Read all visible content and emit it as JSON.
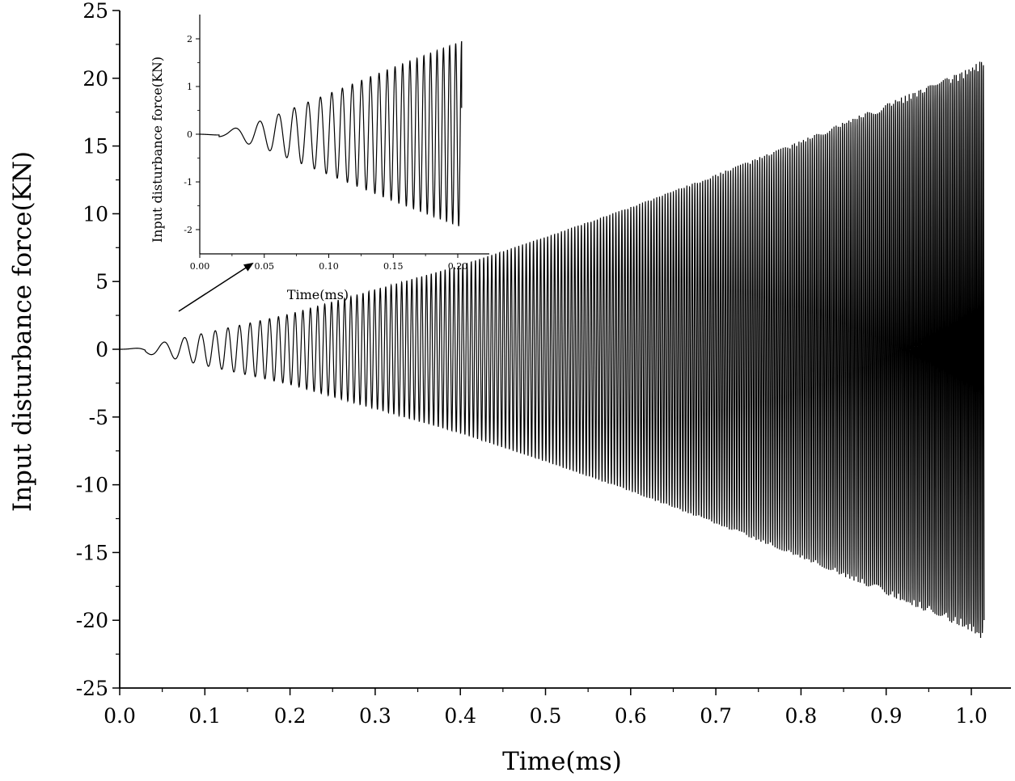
{
  "chart_data": [
    {
      "id": "main",
      "type": "line",
      "xlabel": "Time(ms)",
      "ylabel": "Input disturbance force(KN)",
      "xlim": [
        0,
        1.05
      ],
      "ylim": [
        -25,
        25
      ],
      "xticks": [
        0,
        0.1,
        0.2,
        0.3,
        0.4,
        0.5,
        0.6,
        0.7,
        0.8,
        0.9,
        1.0
      ],
      "xtick_labels": [
        "0.0",
        "0.1",
        "0.2",
        "0.3",
        "0.4",
        "0.5",
        "0.6",
        "0.7",
        "0.8",
        "0.9",
        "1.0"
      ],
      "yticks": [
        -25,
        -20,
        -15,
        -10,
        -5,
        0,
        5,
        10,
        15,
        20,
        25
      ],
      "ytick_labels": [
        "-25",
        "-20",
        "-15",
        "-10",
        "-5",
        "0",
        "5",
        "10",
        "15",
        "20",
        "25"
      ],
      "grid": false,
      "series": [
        {
          "color": "#000000",
          "style": "oscillating chirp with linearly growing envelope",
          "x_range": [
            0,
            1.015
          ],
          "envelope": {
            "x": [
              0,
              0.05,
              0.1,
              0.2,
              0.3,
              0.4,
              0.5,
              0.6,
              0.7,
              0.8,
              0.9,
              1.0,
              1.015
            ],
            "y": [
              0.1,
              0.5,
              1.2,
              2.6,
              4.4,
              6.2,
              8.3,
              10.5,
              12.9,
              15.4,
              18.1,
              20.8,
              21.5
            ]
          }
        }
      ]
    },
    {
      "id": "inset",
      "type": "line",
      "xlabel": "Time(ms)",
      "ylabel": "Input disturbance force(KN)",
      "xlim": [
        0,
        0.22
      ],
      "ylim": [
        -2.4,
        2.4
      ],
      "xticks": [
        0,
        0.05,
        0.1,
        0.15,
        0.2
      ],
      "xtick_labels": [
        "0.00",
        "0.05",
        "0.10",
        "0.15",
        "0.20"
      ],
      "yticks": [
        -2,
        -1,
        0,
        1,
        2
      ],
      "ytick_labels": [
        "-2",
        "-1",
        "0",
        "1",
        "2"
      ],
      "grid": false,
      "series": [
        {
          "color": "#000000",
          "style": "chirp oscillation",
          "x_range": [
            0,
            0.203
          ],
          "envelope": {
            "x": [
              0,
              0.02,
              0.05,
              0.1,
              0.15,
              0.203
            ],
            "y": [
              0.02,
              0.07,
              0.3,
              0.85,
              1.4,
              1.95
            ]
          },
          "final_value": 0.55
        }
      ]
    }
  ],
  "annotation": {
    "type": "arrow",
    "from_main": [
      0.07,
      2.7
    ],
    "to_inset": [
      0.045,
      -2.9
    ]
  }
}
